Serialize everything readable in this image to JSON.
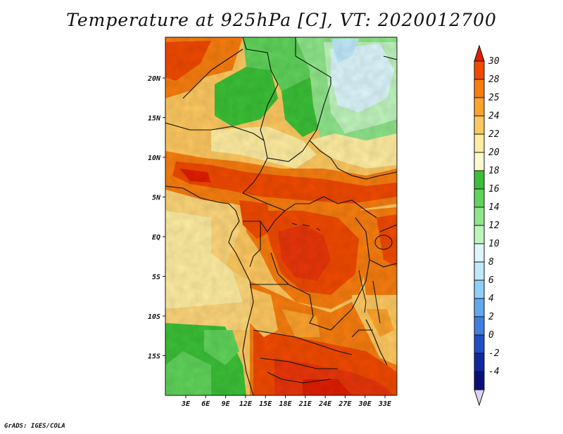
{
  "title": "Temperature at 925hPa [C], VT: 2020012700",
  "credit": "GrADS: IGES/COLA",
  "map": {
    "lon_ticks": [
      "3E",
      "6E",
      "9E",
      "12E",
      "15E",
      "18E",
      "21E",
      "24E",
      "27E",
      "30E",
      "33E"
    ],
    "lat_ticks": [
      "20N",
      "15N",
      "10N",
      "5N",
      "EQ",
      "5S",
      "10S",
      "15S"
    ],
    "lon_range": [
      0,
      34.5
    ],
    "lat_range": [
      -19.5,
      24.5
    ]
  },
  "colorbar": {
    "labels": [
      "30",
      "28",
      "25",
      "24",
      "22",
      "20",
      "18",
      "16",
      "14",
      "12",
      "10",
      "8",
      "6",
      "4",
      "2",
      "0",
      "-2",
      "-4"
    ],
    "colors": [
      "#e01e00",
      "#f04a00",
      "#f77d0f",
      "#fca32e",
      "#fdc860",
      "#feeda0",
      "#fffccc",
      "#3bbf37",
      "#5fd35a",
      "#8fe58a",
      "#bff5bd",
      "#dcf6fb",
      "#bfe9fb",
      "#8fd0f7",
      "#5fa9ee",
      "#3f7fe0",
      "#2050c8",
      "#1128a0",
      "#0a107a",
      "#dcd2f8"
    ]
  }
}
